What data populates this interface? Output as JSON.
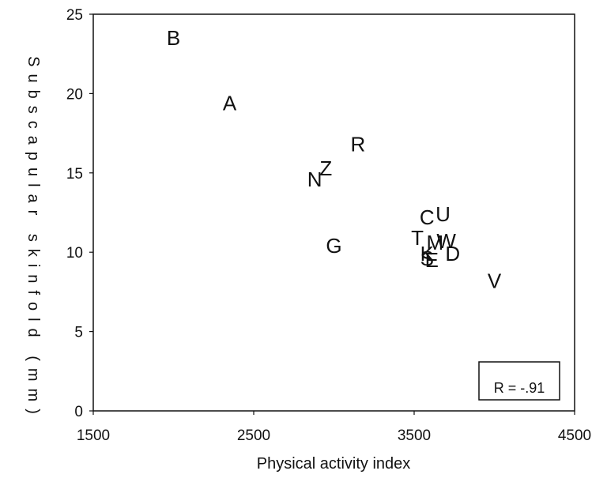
{
  "chart_data": {
    "type": "scatter",
    "xlabel": "Physical activity index",
    "ylabel": "Subscapular skinfold (mm)",
    "xlim": [
      1500,
      4500
    ],
    "ylim": [
      0,
      25
    ],
    "xticks": [
      "1500",
      "2500",
      "3500",
      "4500"
    ],
    "yticks": [
      "0",
      "5",
      "10",
      "15",
      "20",
      "25"
    ],
    "grid": false,
    "annotation": "R = -.91",
    "points": [
      {
        "label": "B",
        "x": 2000,
        "y": 23.5
      },
      {
        "label": "A",
        "x": 2350,
        "y": 19.4
      },
      {
        "label": "R",
        "x": 3150,
        "y": 16.8
      },
      {
        "label": "Z",
        "x": 2950,
        "y": 15.3
      },
      {
        "label": "N",
        "x": 2880,
        "y": 14.6
      },
      {
        "label": "U",
        "x": 3680,
        "y": 12.4
      },
      {
        "label": "C",
        "x": 3580,
        "y": 12.2
      },
      {
        "label": "T",
        "x": 3520,
        "y": 10.9
      },
      {
        "label": "W",
        "x": 3700,
        "y": 10.7
      },
      {
        "label": "M",
        "x": 3630,
        "y": 10.6
      },
      {
        "label": "G",
        "x": 3000,
        "y": 10.4
      },
      {
        "label": "K",
        "x": 3580,
        "y": 9.9
      },
      {
        "label": "D",
        "x": 3740,
        "y": 9.9
      },
      {
        "label": "S",
        "x": 3580,
        "y": 9.6
      },
      {
        "label": "E",
        "x": 3610,
        "y": 9.5
      },
      {
        "label": "V",
        "x": 4000,
        "y": 8.2
      }
    ]
  }
}
